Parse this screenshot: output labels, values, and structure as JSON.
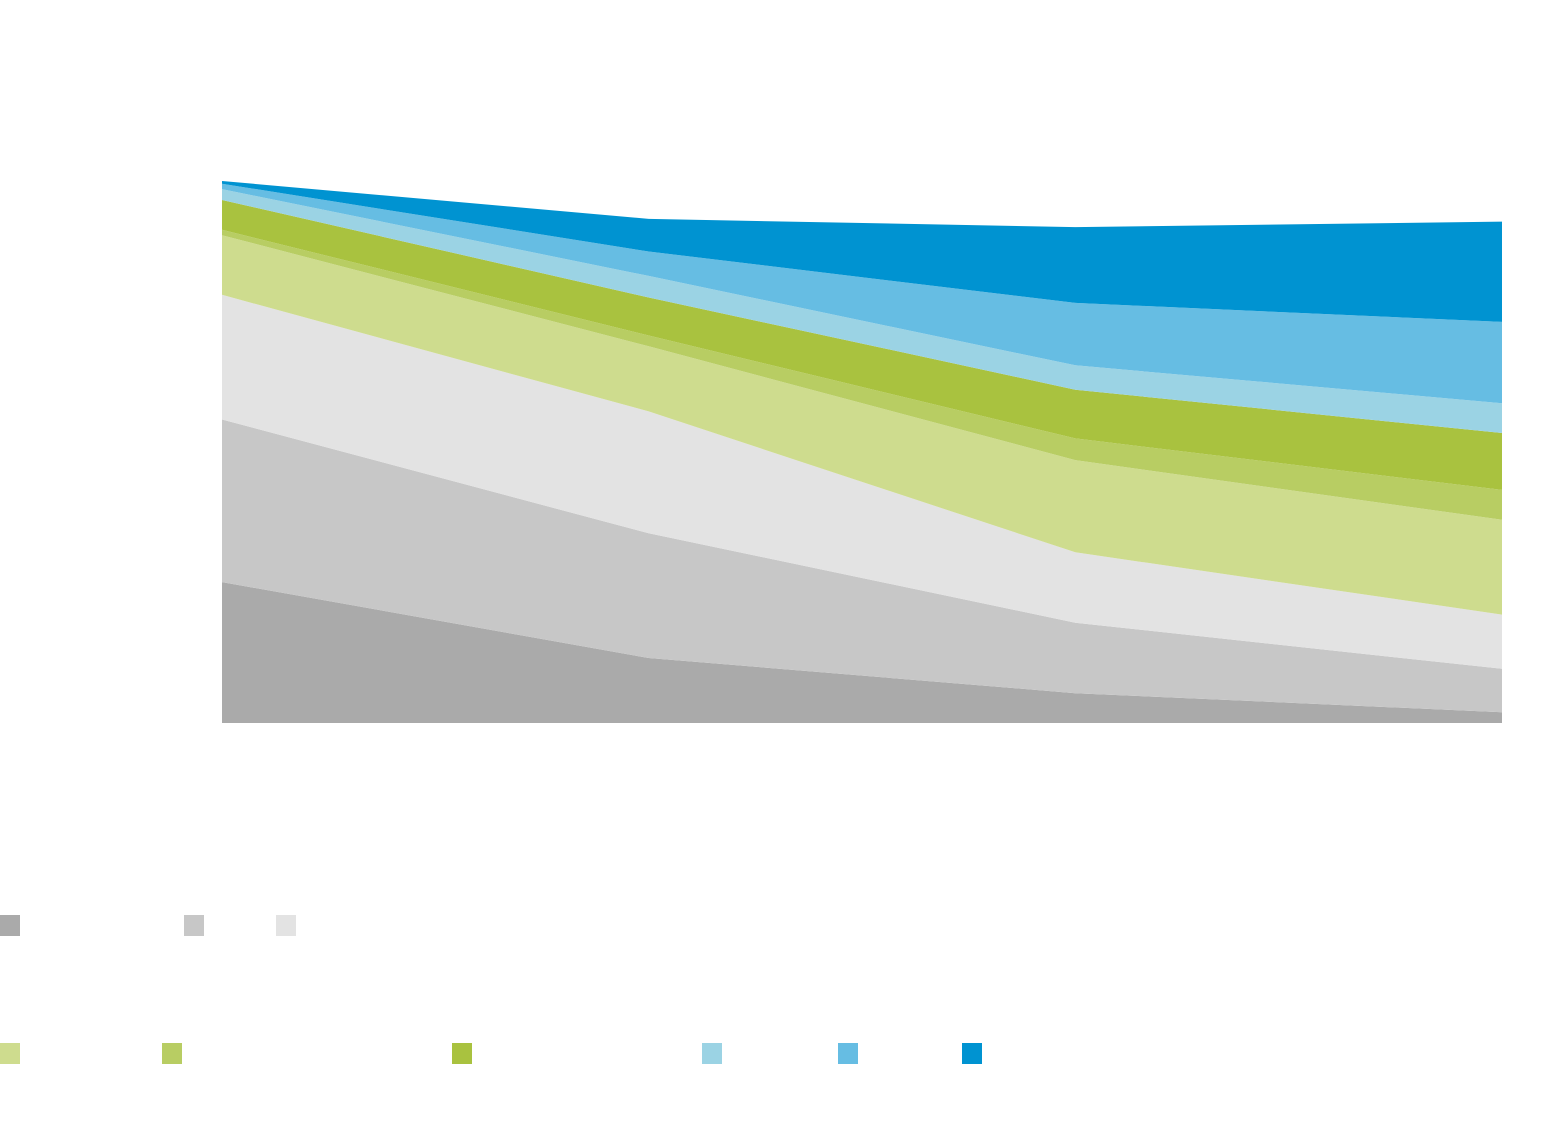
{
  "chart_data": {
    "type": "area",
    "stacked": true,
    "x_points": 4,
    "ylim": [
      0,
      100
    ],
    "grid": false,
    "legend_position": "bottom",
    "series": [
      {
        "color": "#aaaaaa",
        "values": [
          26,
          12,
          5.5,
          2
        ]
      },
      {
        "color": "#c7c7c7",
        "values": [
          30,
          23,
          13,
          8
        ]
      },
      {
        "color": "#e3e3e3",
        "values": [
          23,
          22.5,
          13,
          10
        ]
      },
      {
        "color": "#cedc8e",
        "values": [
          11,
          12,
          17,
          17.5
        ]
      },
      {
        "color": "#b8cd63",
        "values": [
          1,
          2,
          4,
          5.5
        ]
      },
      {
        "color": "#a9c23f",
        "values": [
          5.5,
          7,
          9,
          10.5
        ]
      },
      {
        "color": "#9bd3e4",
        "values": [
          2,
          4,
          4.5,
          5.5
        ]
      },
      {
        "color": "#66bde3",
        "values": [
          1,
          4.5,
          11.5,
          15
        ]
      },
      {
        "color": "#0093d1",
        "values": [
          0.5,
          6,
          14,
          18.5
        ]
      }
    ]
  }
}
